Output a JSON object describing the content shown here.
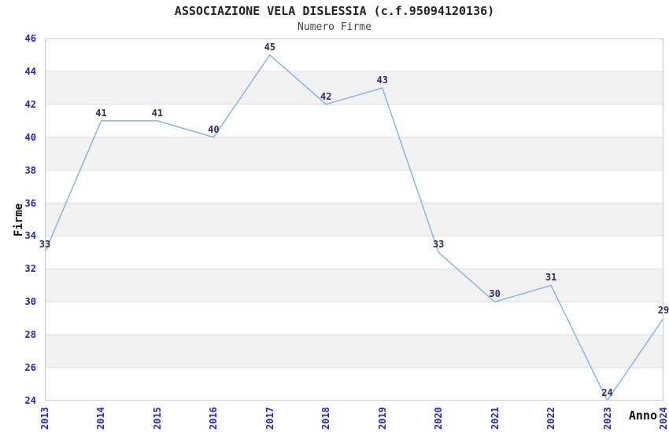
{
  "chart_data": {
    "type": "line",
    "title": "ASSOCIAZIONE VELA DISLESSIA (c.f.95094120136)",
    "subtitle": "Numero Firme",
    "xlabel": "Anno",
    "ylabel": "Firme",
    "categories": [
      "2013",
      "2014",
      "2015",
      "2016",
      "2017",
      "2018",
      "2019",
      "2020",
      "2021",
      "2022",
      "2023",
      "2024"
    ],
    "series": [
      {
        "name": "Numero Firme",
        "values": [
          33,
          41,
          41,
          40,
          45,
          42,
          43,
          33,
          30,
          31,
          24,
          29
        ]
      }
    ],
    "ylim": [
      24,
      46
    ],
    "ytick_step": 2,
    "grid": true,
    "legend": "none",
    "point_labels": true,
    "band_pattern": "alternating horizontal gray bands every 2 units",
    "x_tick_rotation": -90
  },
  "colors": {
    "line": "#7fb3e5",
    "tick_label": "#2323cc",
    "point_label": "#2b2b66",
    "band": "#f2f2f2",
    "gridline": "#dddddd",
    "plot_border": "#cccccc",
    "title": "#222222",
    "subtitle": "#444444",
    "axis_title": "#111111",
    "background": "#ffffff"
  }
}
